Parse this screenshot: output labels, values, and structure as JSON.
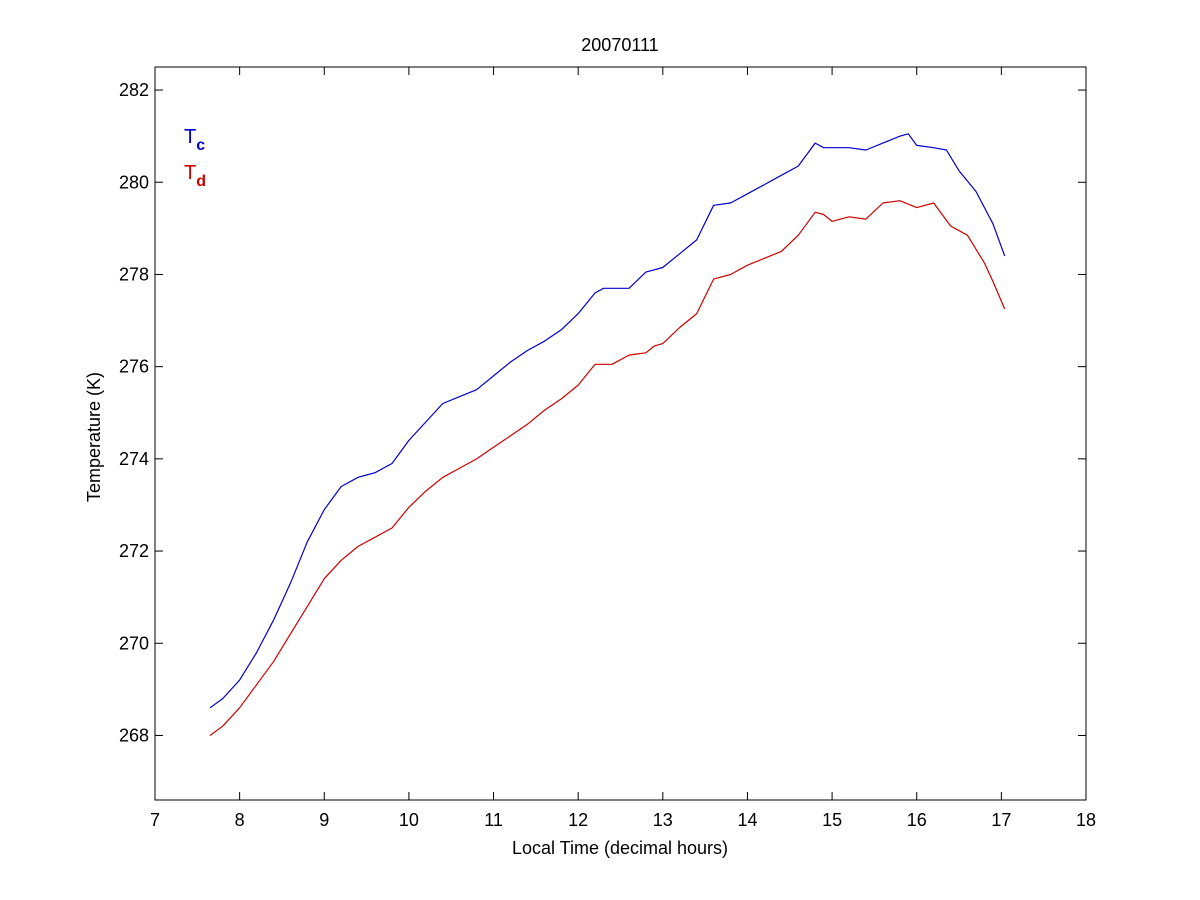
{
  "chart_data": {
    "type": "line",
    "title": "20070111",
    "xlabel": "Local Time (decimal hours)",
    "ylabel": "Temperature (K)",
    "xlim": [
      7,
      18
    ],
    "ylim": [
      266.6,
      282.5
    ],
    "xticks": [
      7,
      8,
      9,
      10,
      11,
      12,
      13,
      14,
      15,
      16,
      17,
      18
    ],
    "yticks": [
      268,
      270,
      272,
      274,
      276,
      278,
      280,
      282
    ],
    "grid": false,
    "legend": {
      "placement": "top-left",
      "entries": [
        {
          "base": "T",
          "sub": "c",
          "color": "#0000cc"
        },
        {
          "base": "T",
          "sub": "d",
          "color": "#cc0000"
        }
      ]
    },
    "series": [
      {
        "color": "#0000cc",
        "x": [
          7.65,
          7.8,
          8.0,
          8.2,
          8.4,
          8.6,
          8.8,
          9.0,
          9.2,
          9.4,
          9.5,
          9.6,
          9.8,
          10.0,
          10.2,
          10.4,
          10.6,
          10.8,
          11.0,
          11.2,
          11.4,
          11.6,
          11.8,
          12.0,
          12.2,
          12.3,
          12.4,
          12.5,
          12.6,
          12.8,
          13.0,
          13.2,
          13.4,
          13.6,
          13.8,
          14.0,
          14.2,
          14.4,
          14.6,
          14.8,
          14.9,
          15.0,
          15.2,
          15.4,
          15.6,
          15.8,
          15.9,
          16.0,
          16.2,
          16.35,
          16.5,
          16.7,
          16.9,
          17.04
        ],
        "y": [
          268.6,
          268.8,
          269.2,
          269.8,
          270.5,
          271.3,
          272.2,
          272.9,
          273.4,
          273.6,
          273.65,
          273.7,
          273.9,
          274.4,
          274.8,
          275.2,
          275.35,
          275.5,
          275.8,
          276.1,
          276.35,
          276.55,
          276.8,
          277.15,
          277.6,
          277.7,
          277.7,
          277.7,
          277.7,
          278.05,
          278.15,
          278.45,
          278.75,
          279.5,
          279.55,
          279.75,
          279.95,
          280.15,
          280.35,
          280.85,
          280.75,
          280.75,
          280.75,
          280.7,
          280.85,
          281.0,
          281.05,
          280.8,
          280.75,
          280.7,
          280.25,
          279.8,
          279.1,
          278.4
        ]
      },
      {
        "color": "#cc0000",
        "x": [
          7.65,
          7.8,
          8.0,
          8.2,
          8.4,
          8.6,
          8.8,
          9.0,
          9.2,
          9.4,
          9.6,
          9.8,
          10.0,
          10.2,
          10.4,
          10.6,
          10.8,
          11.0,
          11.2,
          11.4,
          11.6,
          11.8,
          12.0,
          12.2,
          12.4,
          12.6,
          12.8,
          12.9,
          13.0,
          13.2,
          13.4,
          13.6,
          13.8,
          14.0,
          14.2,
          14.4,
          14.6,
          14.8,
          14.9,
          15.0,
          15.2,
          15.4,
          15.6,
          15.8,
          16.0,
          16.2,
          16.4,
          16.6,
          16.8,
          16.9,
          17.04
        ],
        "y": [
          268.0,
          268.2,
          268.6,
          269.1,
          269.6,
          270.2,
          270.8,
          271.4,
          271.8,
          272.1,
          272.3,
          272.5,
          272.95,
          273.3,
          273.6,
          273.8,
          274.0,
          274.25,
          274.5,
          274.75,
          275.05,
          275.3,
          275.6,
          276.05,
          276.05,
          276.25,
          276.3,
          276.45,
          276.5,
          276.85,
          277.15,
          277.9,
          278.0,
          278.2,
          278.35,
          278.5,
          278.85,
          279.35,
          279.3,
          279.15,
          279.25,
          279.2,
          279.55,
          279.6,
          279.45,
          279.55,
          279.05,
          278.85,
          278.25,
          277.85,
          277.25
        ]
      }
    ]
  }
}
